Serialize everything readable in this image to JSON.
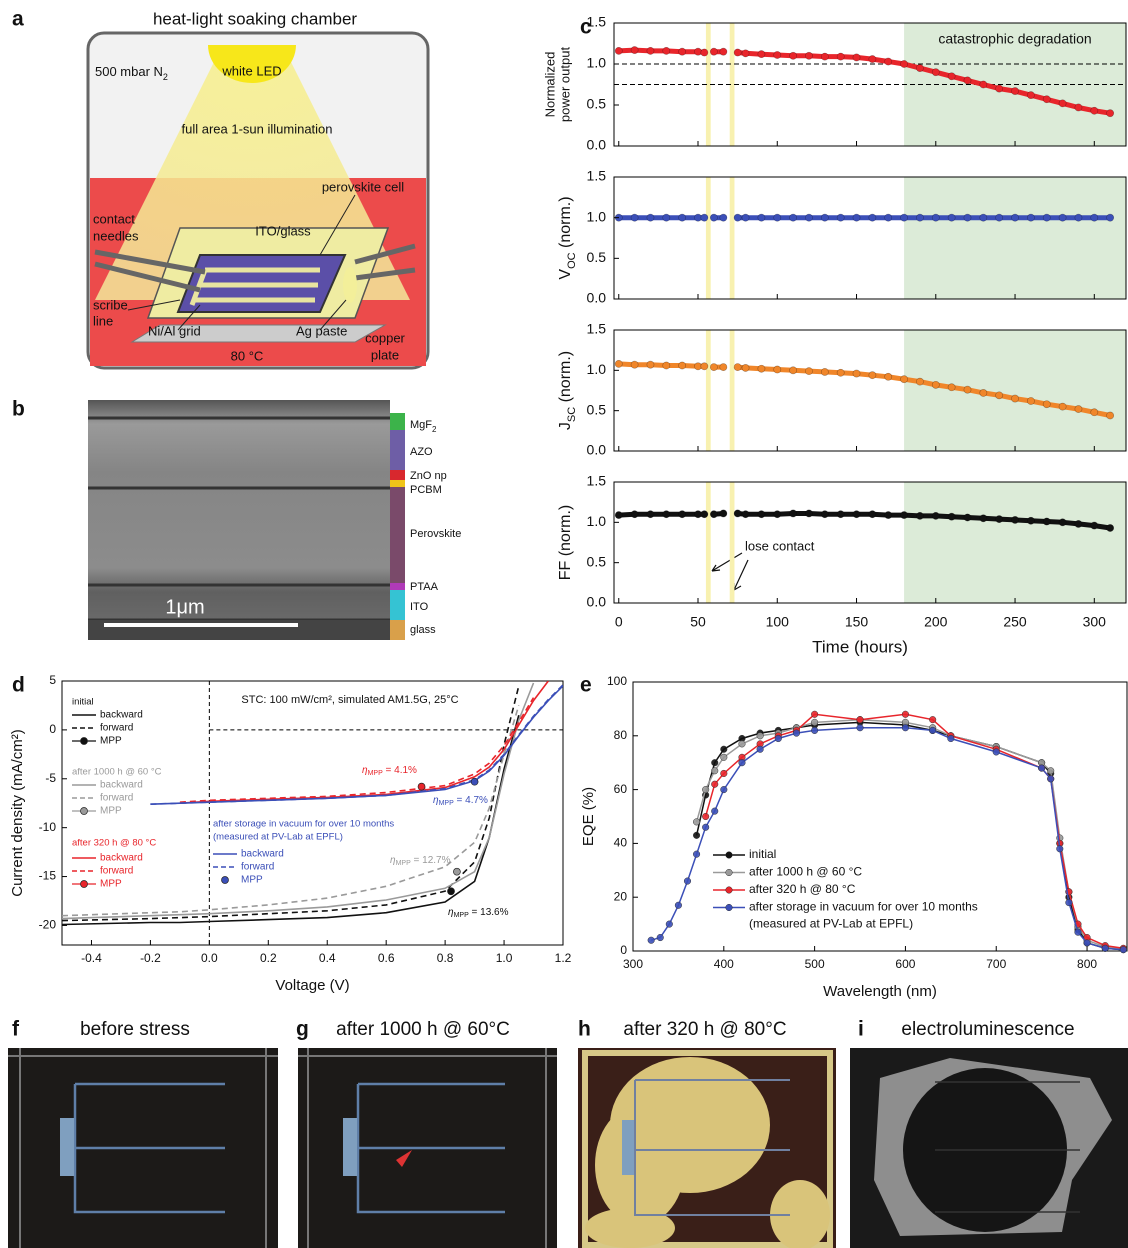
{
  "figure": {
    "letters": [
      "a",
      "b",
      "c",
      "d",
      "e",
      "f",
      "g",
      "h",
      "i"
    ],
    "diagram": {
      "title": "heat-light soaking chamber",
      "atmosphere": [
        "500 mbar N",
        "2"
      ],
      "led": "white LED",
      "illumination": "full area 1-sun illumination",
      "cell": "perovskite cell",
      "needles": [
        "contact",
        "needles"
      ],
      "substrate": "ITO/glass",
      "scribe": [
        "scribe",
        "line"
      ],
      "grid": "Ni/Al grid",
      "paste": "Ag paste",
      "plate": [
        "copper",
        "plate"
      ],
      "temperature": "80 °C"
    },
    "sem": {
      "layers": [
        [
          "MgF",
          "2"
        ],
        [
          "AZO"
        ],
        [
          "ZnO np"
        ],
        [
          "PCBM"
        ],
        [
          "Perovskite"
        ],
        [
          "PTAA"
        ],
        [
          "ITO"
        ],
        [
          "glass"
        ]
      ],
      "scale_bar": "1μm"
    },
    "photos": [
      "before stress",
      "after 1000 h @ 60°C",
      "after 320 h @ 80°C",
      "electroluminescence"
    ]
  },
  "chart_data": [
    {
      "type": "stacked-line",
      "xlabel": "Time (hours)",
      "x": [
        0,
        10,
        20,
        30,
        40,
        50,
        54,
        57,
        60,
        66,
        71,
        75,
        80,
        90,
        100,
        110,
        120,
        130,
        140,
        150,
        160,
        170,
        180,
        190,
        200,
        210,
        220,
        230,
        240,
        250,
        260,
        270,
        280,
        290,
        300,
        310
      ],
      "xlim": [
        -3,
        320
      ],
      "xticks": [
        0,
        50,
        100,
        150,
        200,
        250,
        300
      ],
      "bands": [
        [
          55,
          58
        ],
        [
          70,
          73
        ]
      ],
      "band_color": "#f8f1b0",
      "region": [
        180,
        320
      ],
      "region_color": "#dcebd8",
      "region_label": "catastrophic degradation",
      "annotation": "lose contact",
      "panels": [
        {
          "ylabel": {
            "lines": [
              "Normalized",
              "power output"
            ]
          },
          "ylim": [
            0,
            1.5
          ],
          "yticks": [
            {
              "value": 0,
              "label": "0.0"
            },
            0.5,
            {
              "value": 1,
              "label": "1.0"
            },
            1.5
          ],
          "hlines": [
            1,
            0.75
          ],
          "color": "#e8252b",
          "values": [
            1.16,
            1.17,
            1.16,
            1.16,
            1.15,
            1.15,
            1.14,
            null,
            1.15,
            1.15,
            null,
            1.14,
            1.13,
            1.12,
            1.11,
            1.1,
            1.1,
            1.09,
            1.09,
            1.08,
            1.06,
            1.03,
            1.0,
            0.95,
            0.9,
            0.85,
            0.8,
            0.75,
            0.7,
            0.67,
            0.62,
            0.57,
            0.52,
            0.47,
            0.43,
            0.4
          ]
        },
        {
          "ylabel": {
            "text": "V",
            "sub": "OC",
            "after": " (norm.)"
          },
          "ylim": [
            0,
            1.5
          ],
          "yticks": [
            {
              "value": 0,
              "label": "0.0"
            },
            0.5,
            {
              "value": 1,
              "label": "1.0"
            },
            1.5
          ],
          "color": "#3b4fb8",
          "values": [
            1.0,
            1.0,
            1.0,
            1.0,
            1.0,
            1.0,
            1.0,
            null,
            1.0,
            1.0,
            null,
            1.0,
            1.0,
            1.0,
            1.0,
            1.0,
            1.0,
            1.0,
            1.0,
            1.0,
            1.0,
            1.0,
            1.0,
            1.0,
            1.0,
            1.0,
            1.0,
            1.0,
            1.0,
            1.0,
            1.0,
            1.0,
            1.0,
            1.0,
            1.0,
            1.0
          ]
        },
        {
          "ylabel": {
            "text": "J",
            "sub": "SC",
            "after": " (norm.)"
          },
          "ylim": [
            0,
            1.5
          ],
          "yticks": [
            {
              "value": 0,
              "label": "0.0"
            },
            0.5,
            {
              "value": 1,
              "label": "1.0"
            },
            1.5
          ],
          "color": "#f0862a",
          "values": [
            1.08,
            1.07,
            1.07,
            1.06,
            1.06,
            1.05,
            1.05,
            null,
            1.04,
            1.04,
            null,
            1.04,
            1.03,
            1.02,
            1.01,
            1.0,
            0.99,
            0.98,
            0.97,
            0.96,
            0.94,
            0.92,
            0.89,
            0.86,
            0.82,
            0.79,
            0.76,
            0.72,
            0.69,
            0.65,
            0.62,
            0.58,
            0.55,
            0.52,
            0.48,
            0.44
          ]
        },
        {
          "ylabel": {
            "text": "FF (norm.)"
          },
          "ylim": [
            0,
            1.5
          ],
          "yticks": [
            {
              "value": 0,
              "label": "0.0"
            },
            0.5,
            {
              "value": 1,
              "label": "1.0"
            },
            1.5
          ],
          "color": "#111111",
          "values": [
            1.09,
            1.1,
            1.1,
            1.1,
            1.1,
            1.1,
            1.1,
            null,
            1.1,
            1.11,
            null,
            1.11,
            1.1,
            1.1,
            1.1,
            1.11,
            1.11,
            1.1,
            1.1,
            1.1,
            1.1,
            1.09,
            1.09,
            1.08,
            1.08,
            1.07,
            1.06,
            1.05,
            1.04,
            1.03,
            1.02,
            1.01,
            1.0,
            0.98,
            0.96,
            0.93
          ]
        }
      ]
    },
    {
      "type": "jv",
      "xlabel": "Voltage (V)",
      "ylabel": "Current density (mA/cm²)",
      "note": "STC: 100 mW/cm², simulated AM1.5G, 25°C",
      "x": [
        -0.5,
        -0.2,
        -0.1,
        0,
        0.2,
        0.4,
        0.6,
        0.8,
        0.9,
        0.95,
        1.0,
        1.05,
        1.1,
        1.15,
        1.2
      ],
      "xlim": [
        -0.5,
        1.2
      ],
      "ylim": [
        -22,
        5
      ],
      "xticks": [
        -0.4,
        -0.2,
        {
          "value": 0,
          "label": "0.0"
        },
        0.2,
        0.4,
        0.6,
        0.8,
        {
          "value": 1,
          "label": "1.0"
        },
        1.2
      ],
      "yticks": [
        -20,
        -15,
        -10,
        -5,
        0,
        5
      ],
      "groups": [
        {
          "title": [
            "initial"
          ],
          "color": "#111111",
          "labels": [
            "backward",
            "forward",
            "MPP"
          ],
          "backward": [
            -19.9,
            -19.7,
            -19.7,
            -19.6,
            -19.4,
            -19.2,
            -18.7,
            -17.6,
            -15.5,
            -11,
            -4,
            1.5,
            null,
            null,
            null
          ],
          "forward": [
            -19.5,
            -19.3,
            -19.2,
            -19.1,
            -18.8,
            -18.5,
            -17.9,
            -16.5,
            -13.5,
            -9,
            -1.5,
            4.5,
            null,
            null,
            null
          ],
          "mpp": [
            0.82,
            -16.5
          ],
          "eta": [
            "η",
            "MPP",
            " = 13.6%"
          ]
        },
        {
          "title": [
            "after 1000 h @ 60 °C"
          ],
          "color": "#9a9a9a",
          "labels": [
            "backward",
            "forward",
            "MPP"
          ],
          "backward": [
            -19.3,
            -19.0,
            -18.9,
            -18.8,
            -18.5,
            -18.1,
            -17.4,
            -16.2,
            -14.5,
            -11,
            -4.5,
            1,
            4.8,
            null,
            null
          ],
          "forward": [
            -19.0,
            -18.7,
            -18.6,
            -18.4,
            -17.9,
            -17.2,
            -16.0,
            -14.0,
            -11.5,
            -8,
            -2.5,
            2.5,
            null,
            null,
            null
          ],
          "mpp": [
            0.84,
            -14.5
          ],
          "eta": [
            "η",
            "MPP",
            " = 12.7%"
          ]
        },
        {
          "title": [
            "after 320 h @ 80 °C"
          ],
          "color": "#e8252b",
          "labels": [
            "backward",
            "forward",
            "MPP"
          ],
          "backward": [
            null,
            null,
            -7.5,
            -7.3,
            -7.1,
            -6.9,
            -6.6,
            -5.9,
            -4.8,
            -3.8,
            -2.0,
            0.5,
            3,
            5,
            null
          ],
          "forward": [
            null,
            null,
            -7.4,
            -7.2,
            -7.0,
            -6.8,
            -6.4,
            -5.7,
            -4.5,
            -3.4,
            -1.6,
            0.8,
            3.3,
            null,
            null
          ],
          "mpp": [
            0.72,
            -5.8
          ],
          "eta": [
            "η",
            "MPP",
            " = 4.1%"
          ]
        },
        {
          "title": [
            "after storage in vacuum for over 10 months",
            "(measured at PV-Lab at EPFL)"
          ],
          "color": "#3b4fb8",
          "labels": [
            "backward",
            "forward",
            "MPP"
          ],
          "backward": [
            null,
            -7.6,
            -7.5,
            -7.4,
            -7.2,
            -7.0,
            -6.7,
            -6.1,
            -5.2,
            -4.2,
            -2.6,
            -0.6,
            1.3,
            3.0,
            4.5
          ],
          "forward": [
            null,
            -7.6,
            -7.5,
            -7.4,
            -7.2,
            -7.0,
            -6.7,
            -6.0,
            -5.1,
            -4.1,
            -2.5,
            -0.5,
            1.4,
            3.1,
            4.6
          ],
          "mpp": [
            0.9,
            -5.3
          ],
          "eta": [
            "η",
            "MPP",
            " = 4.7%"
          ]
        }
      ]
    },
    {
      "type": "line",
      "xlabel": "Wavelength (nm)",
      "ylabel": "EQE (%)",
      "x": [
        320,
        330,
        340,
        350,
        360,
        370,
        380,
        390,
        400,
        420,
        440,
        460,
        480,
        500,
        550,
        600,
        630,
        650,
        700,
        750,
        760,
        770,
        780,
        790,
        800,
        820,
        840
      ],
      "xlim": [
        300,
        844
      ],
      "ylim": [
        0,
        100
      ],
      "xticks": [
        300,
        400,
        500,
        600,
        700,
        800
      ],
      "yticks": [
        0,
        20,
        40,
        60,
        80,
        100
      ],
      "series": [
        {
          "name": "initial",
          "color": "#111111",
          "values": [
            null,
            null,
            null,
            null,
            null,
            43,
            58,
            70,
            75,
            79,
            81,
            82,
            83,
            84,
            85,
            84,
            82,
            80,
            76,
            70,
            66,
            40,
            20,
            8,
            3,
            1,
            0.5
          ]
        },
        {
          "name": "after 1000 h @ 60 °C",
          "color": "#9a9a9a",
          "values": [
            null,
            null,
            null,
            null,
            null,
            48,
            60,
            67,
            72,
            77,
            80,
            81,
            83,
            85,
            86,
            85,
            83,
            80,
            76,
            70,
            67,
            42,
            22,
            9,
            4,
            1.5,
            0.7
          ]
        },
        {
          "name": "after 320 h @ 80 °C",
          "color": "#e8252b",
          "values": [
            null,
            null,
            null,
            null,
            null,
            null,
            50,
            62,
            66,
            72,
            77,
            80,
            82,
            88,
            86,
            88,
            86,
            80,
            75,
            68,
            64,
            40,
            22,
            10,
            5,
            2,
            1
          ]
        },
        {
          "name": "after storage in vacuum for over 10 months",
          "note": "(measured at PV-Lab at EPFL)",
          "color": "#3b4fb8",
          "values": [
            4,
            5,
            10,
            17,
            26,
            36,
            46,
            52,
            60,
            70,
            75,
            79,
            81,
            82,
            83,
            83,
            82,
            79,
            74,
            68,
            64,
            38,
            18,
            7,
            3,
            1,
            0.5
          ]
        }
      ]
    }
  ]
}
